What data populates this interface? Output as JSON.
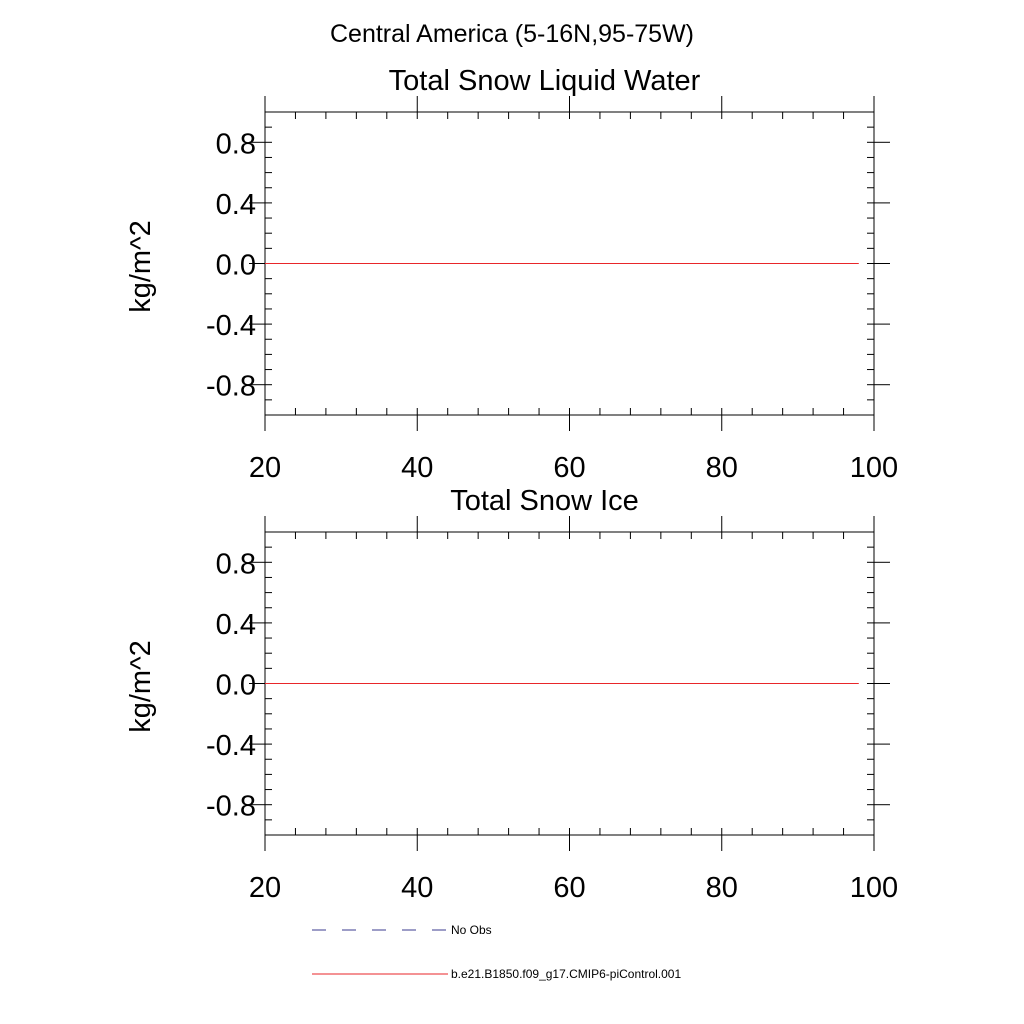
{
  "figure": {
    "title": "Central America (5-16N,95-75W)"
  },
  "legend": {
    "entries": [
      {
        "label": "No Obs",
        "style": "dashed",
        "color": "#3b3b8f"
      },
      {
        "label": "b.e21.B1850.f09_g17.CMIP6-piControl.001",
        "style": "solid",
        "color": "#e8262a"
      }
    ]
  },
  "chart_data": [
    {
      "type": "line",
      "title": "Total Snow Liquid Water",
      "xlabel": "",
      "ylabel": "kg/m^2",
      "xlim": [
        20,
        100
      ],
      "ylim": [
        -1.0,
        1.0
      ],
      "xticks": [
        "20",
        "40",
        "60",
        "80",
        "100"
      ],
      "yticks": [
        "0.8",
        "0.4",
        "0.0",
        "-0.4",
        "-0.8"
      ],
      "xtick_values": [
        20,
        40,
        60,
        80,
        100
      ],
      "ytick_values": [
        0.8,
        0.4,
        0.0,
        -0.4,
        -0.8
      ],
      "grid": false,
      "series": [
        {
          "name": "b.e21.B1850.f09_g17.CMIP6-piControl.001",
          "color": "#e8262a",
          "x": [
            20,
            98
          ],
          "y": [
            0.0,
            0.0
          ]
        }
      ]
    },
    {
      "type": "line",
      "title": "Total Snow Ice",
      "xlabel": "",
      "ylabel": "kg/m^2",
      "xlim": [
        20,
        100
      ],
      "ylim": [
        -1.0,
        1.0
      ],
      "xticks": [
        "20",
        "40",
        "60",
        "80",
        "100"
      ],
      "yticks": [
        "0.8",
        "0.4",
        "0.0",
        "-0.4",
        "-0.8"
      ],
      "xtick_values": [
        20,
        40,
        60,
        80,
        100
      ],
      "ytick_values": [
        0.8,
        0.4,
        0.0,
        -0.4,
        -0.8
      ],
      "grid": false,
      "series": [
        {
          "name": "b.e21.B1850.f09_g17.CMIP6-piControl.001",
          "color": "#e8262a",
          "x": [
            20,
            98
          ],
          "y": [
            0.0,
            0.0
          ]
        }
      ]
    }
  ]
}
